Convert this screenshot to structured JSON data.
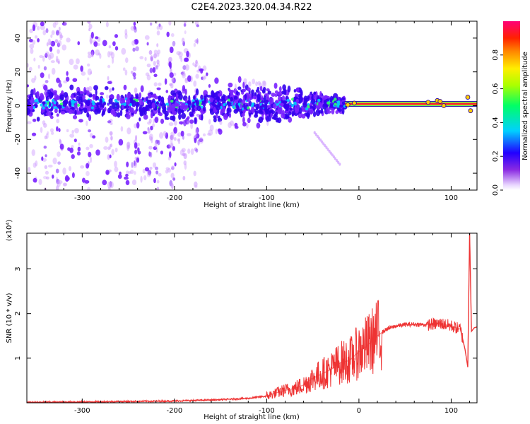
{
  "page": {
    "title": "C2E4.2023.320.04.34.R22"
  },
  "chart_data": [
    {
      "type": "heatmap",
      "xlabel": "Height of straight line (km)",
      "ylabel": "Frequency (Hz)",
      "xlim": [
        -360,
        128
      ],
      "ylim": [
        -50,
        50
      ],
      "xticks": [
        -300,
        -200,
        -100,
        0,
        100
      ],
      "xtick_labels": [
        "-300",
        "-200",
        "-100",
        "0",
        "100"
      ],
      "yticks": [
        -40,
        -20,
        0,
        20,
        40
      ],
      "ytick_labels": [
        "-40",
        "-20",
        "0",
        "20",
        "40"
      ],
      "colorbar": {
        "label": "Normalized spectral amplitude",
        "range": [
          0,
          1
        ],
        "ticks": [
          0,
          0.2,
          0.4,
          0.6,
          0.8
        ],
        "tick_labels": [
          "0.0",
          "0.2",
          "0.4",
          "0.6",
          "0.8"
        ]
      },
      "features": {
        "carrier_band": {
          "x_start": -15,
          "x_end": 128,
          "frequency_hz": 1,
          "amplitude": 0.9
        },
        "broad_scatter_extent_hz": {
          "at_-300_km": [
            -50,
            50
          ],
          "at_-100_km": [
            -12,
            12
          ],
          "at_-20_km": [
            -4,
            4
          ]
        }
      }
    },
    {
      "type": "line",
      "xlabel": "Height of straight line (km)",
      "ylabel": "SNR (10 * v/v)",
      "y_multiplier": "(x10⁴)",
      "xlim": [
        -360,
        128
      ],
      "ylim": [
        0,
        3.8
      ],
      "xticks": [
        -300,
        -200,
        -100,
        0,
        100
      ],
      "xtick_labels": [
        "-300",
        "-200",
        "-100",
        "0",
        "100"
      ],
      "yticks": [
        1,
        2,
        3
      ],
      "ytick_labels": [
        "1",
        "2",
        "3"
      ],
      "series": [
        {
          "color": "#ee3333",
          "x": [
            -360,
            -300,
            -250,
            -200,
            -150,
            -120,
            -100,
            -90,
            -80,
            -70,
            -60,
            -50,
            -40,
            -30,
            -20,
            -10,
            0,
            10,
            20,
            30,
            40,
            50,
            60,
            70,
            80,
            90,
            100,
            110,
            115,
            118,
            120,
            122,
            125,
            128
          ],
          "y": [
            0.01,
            0.02,
            0.03,
            0.04,
            0.07,
            0.1,
            0.15,
            0.22,
            0.28,
            0.32,
            0.4,
            0.55,
            0.65,
            0.75,
            0.9,
            0.95,
            1.15,
            1.3,
            1.5,
            1.65,
            1.72,
            1.75,
            1.76,
            1.75,
            1.76,
            1.77,
            1.72,
            1.65,
            1.2,
            0.8,
            3.8,
            1.6,
            1.68,
            1.7
          ]
        }
      ]
    }
  ],
  "style": {
    "series_color": "#ee3333",
    "carrier_color": "#ee2233",
    "scatter_colors": [
      "#cc99ff",
      "#7a22ff",
      "#3300ee",
      "#00ccff",
      "#33ff66",
      "#ffcc00"
    ]
  }
}
